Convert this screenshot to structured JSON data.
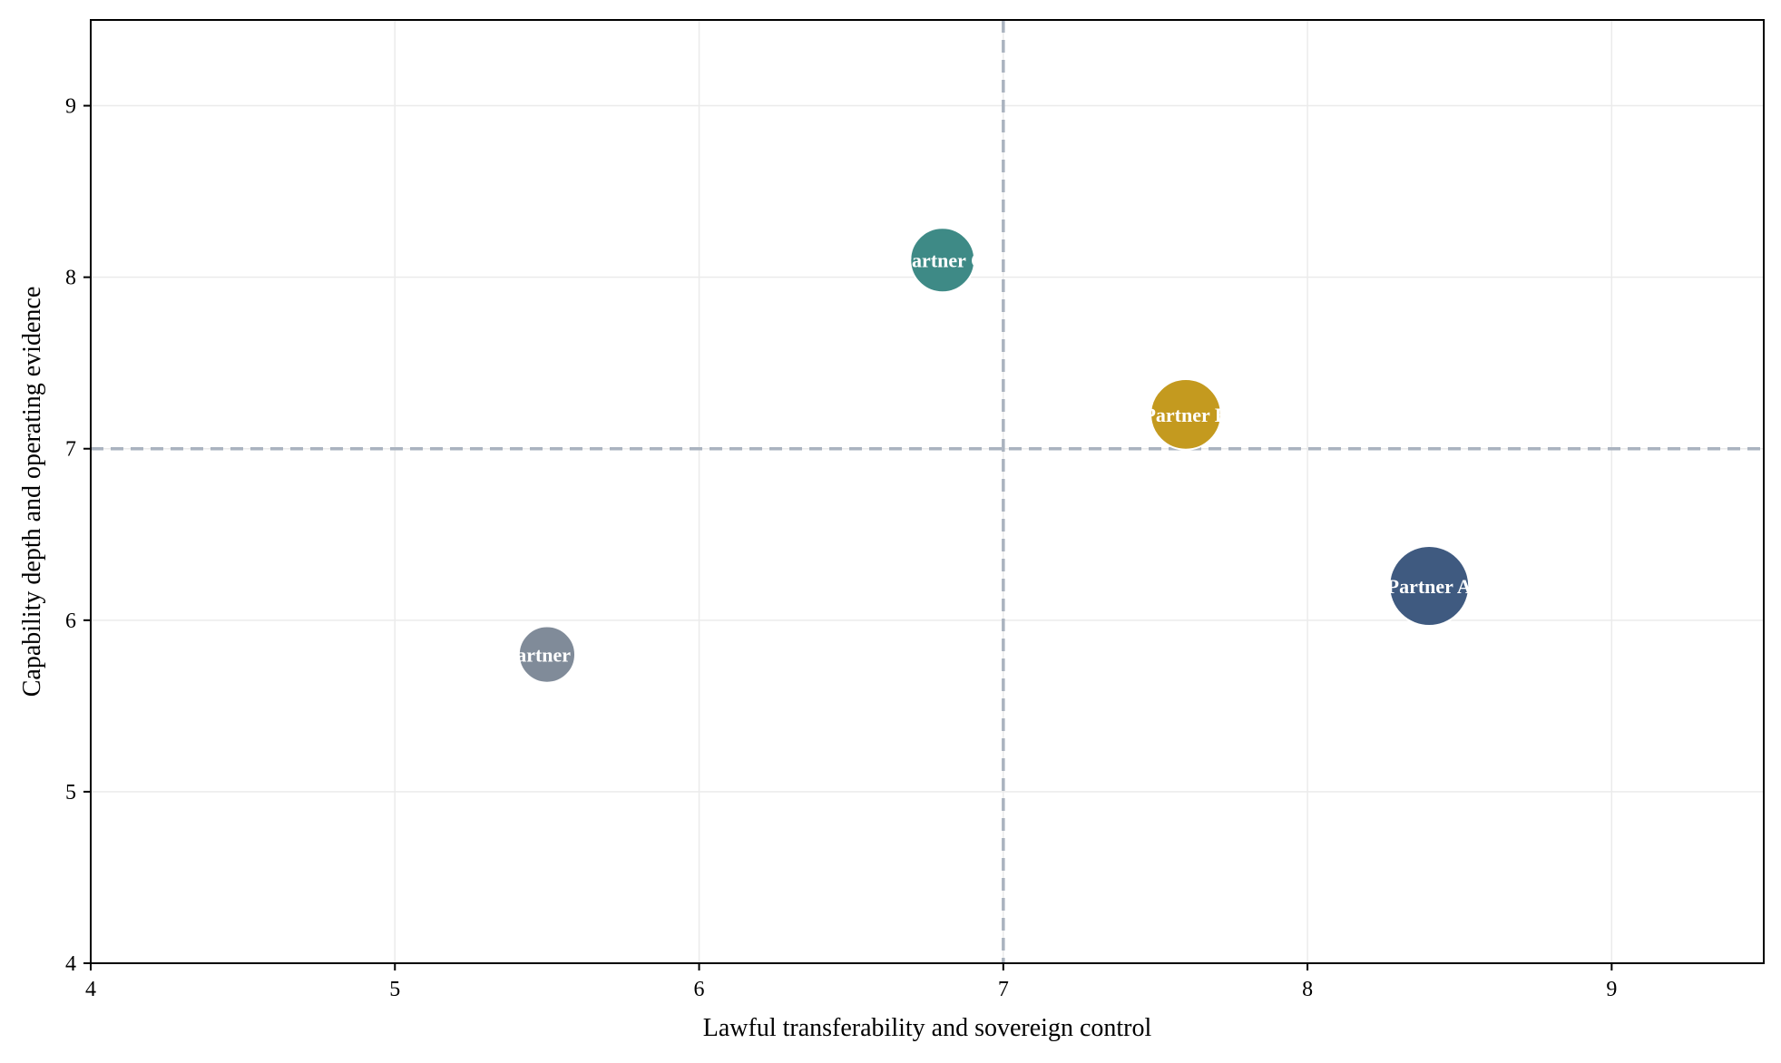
{
  "chart_data": {
    "type": "scatter",
    "title": "",
    "xlabel": "Lawful transferability and sovereign control",
    "ylabel": "Capability depth and operating evidence",
    "xlim": [
      4,
      9.5
    ],
    "ylim": [
      4,
      9.5
    ],
    "xticks": [
      "4",
      "5",
      "6",
      "7",
      "8",
      "9"
    ],
    "yticks": [
      "4",
      "5",
      "6",
      "7",
      "8",
      "9"
    ],
    "grid": true,
    "reference_lines": {
      "x": 7,
      "y": 7,
      "style": "dashed",
      "color": "#aab3bf"
    },
    "points": [
      {
        "label": "Partner A",
        "x": 8.4,
        "y": 6.2,
        "size": 1.0,
        "color": "#3f5a80"
      },
      {
        "label": "Partner B",
        "x": 7.6,
        "y": 7.2,
        "size": 0.78,
        "color": "#c49a1f"
      },
      {
        "label": "Partner C",
        "x": 6.8,
        "y": 8.1,
        "size": 0.65,
        "color": "#3e8a86"
      },
      {
        "label": "Partner D",
        "x": 5.5,
        "y": 5.8,
        "size": 0.5,
        "color": "#808b99"
      }
    ]
  }
}
